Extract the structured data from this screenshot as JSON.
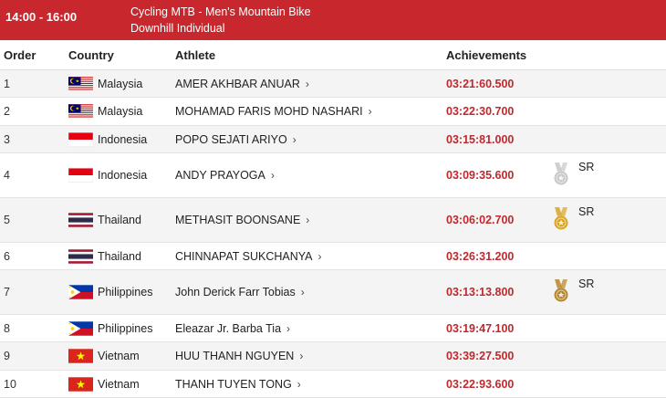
{
  "header": {
    "time": "14:00 - 16:00",
    "event_line1": "Cycling MTB - Men's Mountain Bike",
    "event_line2": "Downhill Individual"
  },
  "columns": {
    "order": "Order",
    "country": "Country",
    "athlete": "Athlete",
    "achievements": "Achievements"
  },
  "colors": {
    "header_bg": "#c8282d",
    "achievement_text": "#c0282d",
    "alt_row_bg": "#f4f4f4",
    "silver": "#c8c8c8",
    "gold": "#d9a520",
    "bronze": "#b5862a"
  },
  "rows": [
    {
      "order": "1",
      "country": "Malaysia",
      "flag": "malaysia-flag",
      "athlete": "AMER AKHBAR ANUAR",
      "achievement": "03:21:60.500",
      "medal": null,
      "medal_label": ""
    },
    {
      "order": "2",
      "country": "Malaysia",
      "flag": "malaysia-flag",
      "athlete": "MOHAMAD FARIS MOHD NASHARI",
      "achievement": "03:22:30.700",
      "medal": null,
      "medal_label": ""
    },
    {
      "order": "3",
      "country": "Indonesia",
      "flag": "indonesia-flag",
      "athlete": "POPO SEJATI ARIYO",
      "achievement": "03:15:81.000",
      "medal": null,
      "medal_label": ""
    },
    {
      "order": "4",
      "country": "Indonesia",
      "flag": "indonesia-flag",
      "athlete": "ANDY PRAYOGA",
      "achievement": "03:09:35.600",
      "medal": "silver-medal-icon",
      "medal_label": "SR"
    },
    {
      "order": "5",
      "country": "Thailand",
      "flag": "thailand-flag",
      "athlete": "METHASIT BOONSANE",
      "achievement": "03:06:02.700",
      "medal": "gold-medal-icon",
      "medal_label": "SR"
    },
    {
      "order": "6",
      "country": "Thailand",
      "flag": "thailand-flag",
      "athlete": "CHINNAPAT SUKCHANYA",
      "achievement": "03:26:31.200",
      "medal": null,
      "medal_label": ""
    },
    {
      "order": "7",
      "country": "Philippines",
      "flag": "philippines-flag",
      "athlete": "John Derick Farr Tobias",
      "achievement": "03:13:13.800",
      "medal": "bronze-medal-icon",
      "medal_label": "SR"
    },
    {
      "order": "8",
      "country": "Philippines",
      "flag": "philippines-flag",
      "athlete": "Eleazar Jr. Barba Tia",
      "achievement": "03:19:47.100",
      "medal": null,
      "medal_label": ""
    },
    {
      "order": "9",
      "country": "Vietnam",
      "flag": "vietnam-flag",
      "athlete": "HUU THANH NGUYEN",
      "achievement": "03:39:27.500",
      "medal": null,
      "medal_label": ""
    },
    {
      "order": "10",
      "country": "Vietnam",
      "flag": "vietnam-flag",
      "athlete": "THANH TUYEN TONG",
      "achievement": "03:22:93.600",
      "medal": null,
      "medal_label": ""
    }
  ]
}
